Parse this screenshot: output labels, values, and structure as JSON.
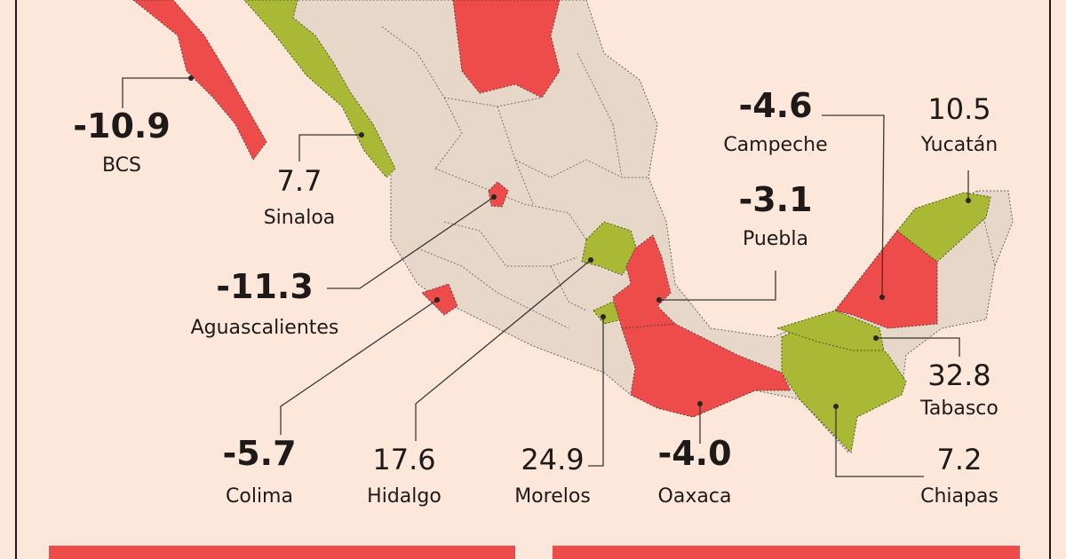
{
  "states": [
    {
      "name": "BCS",
      "value": "-10.9"
    },
    {
      "name": "Sinaloa",
      "value": "7.7"
    },
    {
      "name": "Aguascalientes",
      "value": "-11.3"
    },
    {
      "name": "Colima",
      "value": "-5.7"
    },
    {
      "name": "Hidalgo",
      "value": "17.6"
    },
    {
      "name": "Morelos",
      "value": "24.9"
    },
    {
      "name": "Oaxaca",
      "value": "-4.0"
    },
    {
      "name": "Chiapas",
      "value": "7.2"
    },
    {
      "name": "Tabasco",
      "value": "32.8"
    },
    {
      "name": "Campeche",
      "value": "-4.6"
    },
    {
      "name": "Puebla",
      "value": "-3.1"
    },
    {
      "name": "Yucatán",
      "value": "10.5"
    }
  ]
}
